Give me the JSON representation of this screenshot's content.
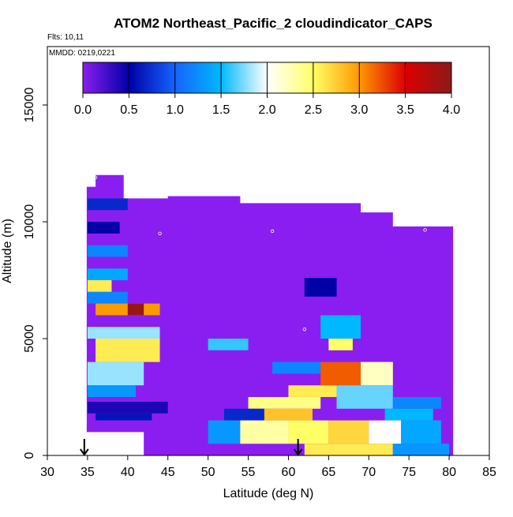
{
  "chart_data": {
    "type": "heatmap",
    "title": "ATOM2 Northeast_Pacific_2 cloudindicator_CAPS",
    "annotations": [
      "Flts: 10,11",
      "MMDD: 0219,0221"
    ],
    "xlabel": "Latitude (deg N)",
    "ylabel": "Altitude (m)",
    "xlim": [
      30,
      85
    ],
    "ylim": [
      0,
      17500
    ],
    "x_ticks": [
      30,
      35,
      40,
      45,
      50,
      55,
      60,
      65,
      70,
      75,
      80,
      85
    ],
    "y_ticks": [
      0,
      5000,
      10000,
      15000
    ],
    "colorbar": {
      "range": [
        0,
        4
      ],
      "ticks": [
        "0.0",
        "0.5",
        "1.0",
        "1.5",
        "2.0",
        "2.5",
        "3.0",
        "3.5",
        "4.0"
      ]
    },
    "markers": [
      {
        "type": "arrow-down",
        "x": 34.6
      },
      {
        "type": "arrow-down",
        "x": 61.2
      }
    ],
    "background_value": 0.0,
    "cells": [
      [
        35,
        40,
        10500,
        11000,
        0.7
      ],
      [
        35,
        39,
        9500,
        10000,
        0.5
      ],
      [
        35,
        40,
        8500,
        9000,
        1.2
      ],
      [
        35,
        40,
        7500,
        8000,
        1.4
      ],
      [
        35,
        38,
        7000,
        7500,
        2.6
      ],
      [
        35,
        40,
        6500,
        7000,
        1.2
      ],
      [
        36,
        44,
        6000,
        6500,
        3.0
      ],
      [
        40,
        42,
        6000,
        6500,
        3.9
      ],
      [
        35,
        44,
        5000,
        5500,
        1.8
      ],
      [
        36,
        44,
        4000,
        5000,
        2.6
      ],
      [
        35,
        42,
        3000,
        4000,
        1.8
      ],
      [
        35,
        41,
        2500,
        3000,
        1.3
      ],
      [
        35,
        45,
        1800,
        2300,
        0.4
      ],
      [
        36,
        43,
        1500,
        1800,
        0.6
      ],
      [
        50,
        55,
        4500,
        5000,
        1.6
      ],
      [
        62,
        66,
        6800,
        7600,
        0.5
      ],
      [
        64,
        69,
        5000,
        6000,
        1.5
      ],
      [
        65,
        68,
        4500,
        5000,
        2.5
      ],
      [
        58,
        64,
        3500,
        4000,
        1.2
      ],
      [
        64,
        69,
        3000,
        4000,
        3.2
      ],
      [
        69,
        73,
        3000,
        4000,
        2.2
      ],
      [
        60,
        66,
        2500,
        3000,
        2.6
      ],
      [
        55,
        64,
        2000,
        2500,
        2.4
      ],
      [
        66,
        73,
        2000,
        3000,
        1.7
      ],
      [
        73,
        79,
        2000,
        2500,
        1.2
      ],
      [
        52,
        57,
        1500,
        2000,
        0.7
      ],
      [
        57,
        63,
        1500,
        2000,
        2.8
      ],
      [
        72,
        78,
        1500,
        2000,
        1.5
      ],
      [
        50,
        54,
        500,
        1500,
        1.3
      ],
      [
        54,
        60,
        500,
        1500,
        2.3
      ],
      [
        60,
        65,
        500,
        1500,
        2.5
      ],
      [
        65,
        70,
        500,
        1500,
        2.7
      ],
      [
        70,
        74,
        500,
        1500,
        2.0
      ],
      [
        74,
        79,
        500,
        1500,
        1.4
      ],
      [
        62,
        73,
        0,
        500,
        2.6
      ],
      [
        73,
        80,
        0,
        500,
        1.3
      ]
    ],
    "point_labels": [
      {
        "x": 36,
        "y": 11900,
        "label": "0.0"
      },
      {
        "x": 44,
        "y": 9500,
        "label": "0.0"
      },
      {
        "x": 58,
        "y": 9600,
        "label": "0.0"
      },
      {
        "x": 77,
        "y": 9650,
        "label": "0.0"
      },
      {
        "x": 62,
        "y": 5400,
        "label": "0.0"
      }
    ]
  }
}
